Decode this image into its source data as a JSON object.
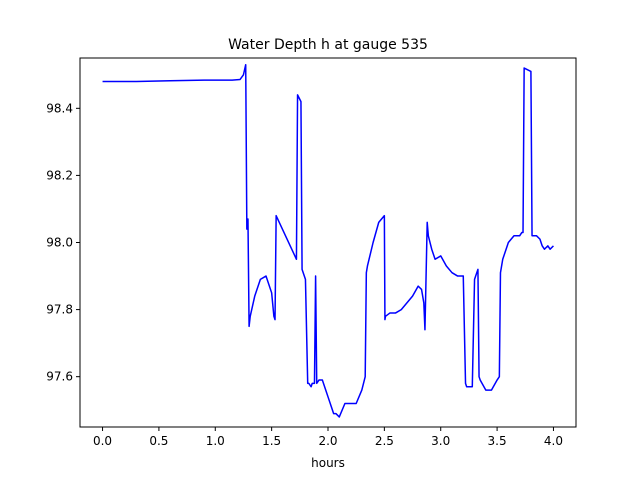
{
  "chart_data": {
    "type": "line",
    "title": "Water Depth h at gauge 535",
    "xlabel": "hours",
    "ylabel": "",
    "xlim": [
      -0.2,
      4.2
    ],
    "ylim": [
      97.45,
      98.55
    ],
    "grid": false,
    "xticks": [
      0.0,
      0.5,
      1.0,
      1.5,
      2.0,
      2.5,
      3.0,
      3.5,
      4.0
    ],
    "xtick_labels": [
      "0.0",
      "0.5",
      "1.0",
      "1.5",
      "2.0",
      "2.5",
      "3.0",
      "3.5",
      "4.0"
    ],
    "yticks": [
      97.6,
      97.8,
      98.0,
      98.2,
      98.4
    ],
    "ytick_labels": [
      "97.6",
      "97.8",
      "98.0",
      "98.2",
      "98.4"
    ],
    "series": [
      {
        "color": "#0000ff",
        "x": [
          0.0,
          0.3,
          0.6,
          0.9,
          1.0,
          1.15,
          1.22,
          1.25,
          1.27,
          1.28,
          1.285,
          1.29,
          1.3,
          1.31,
          1.35,
          1.4,
          1.45,
          1.5,
          1.52,
          1.53,
          1.54,
          1.72,
          1.73,
          1.76,
          1.77,
          1.8,
          1.82,
          1.83,
          1.85,
          1.86,
          1.88,
          1.89,
          1.9,
          1.92,
          1.95,
          1.98,
          2.0,
          2.03,
          2.05,
          2.07,
          2.1,
          2.15,
          2.2,
          2.25,
          2.3,
          2.33,
          2.34,
          2.35,
          2.4,
          2.45,
          2.5,
          2.505,
          2.51,
          2.55,
          2.6,
          2.65,
          2.7,
          2.75,
          2.8,
          2.83,
          2.85,
          2.86,
          2.88,
          2.885,
          2.89,
          2.92,
          2.95,
          3.0,
          3.05,
          3.1,
          3.15,
          3.2,
          3.22,
          3.23,
          3.25,
          3.28,
          3.3,
          3.31,
          3.33,
          3.34,
          3.35,
          3.4,
          3.45,
          3.5,
          3.52,
          3.53,
          3.55,
          3.6,
          3.65,
          3.7,
          3.72,
          3.73,
          3.74,
          3.8,
          3.81,
          3.85,
          3.88,
          3.9,
          3.92,
          3.95,
          3.97,
          4.0
        ],
        "y": [
          98.48,
          98.48,
          98.482,
          98.484,
          98.484,
          98.484,
          98.486,
          98.5,
          98.53,
          98.04,
          98.06,
          98.07,
          97.75,
          97.78,
          97.84,
          97.89,
          97.9,
          97.85,
          97.78,
          97.77,
          98.08,
          97.95,
          98.44,
          98.42,
          97.92,
          97.89,
          97.58,
          97.58,
          97.57,
          97.58,
          97.58,
          97.9,
          97.58,
          97.59,
          97.59,
          97.56,
          97.54,
          97.51,
          97.49,
          97.49,
          97.48,
          97.52,
          97.52,
          97.52,
          97.56,
          97.6,
          97.91,
          97.93,
          98.0,
          98.06,
          98.08,
          97.77,
          97.78,
          97.79,
          97.79,
          97.8,
          97.82,
          97.84,
          97.87,
          97.86,
          97.82,
          97.74,
          98.06,
          98.04,
          98.02,
          97.98,
          97.95,
          97.96,
          97.93,
          97.91,
          97.9,
          97.9,
          97.58,
          97.57,
          97.57,
          97.57,
          97.89,
          97.9,
          97.92,
          97.6,
          97.59,
          97.56,
          97.56,
          97.59,
          97.6,
          97.91,
          97.95,
          98.0,
          98.02,
          98.02,
          98.03,
          98.03,
          98.52,
          98.51,
          98.02,
          98.02,
          98.01,
          97.99,
          97.98,
          97.99,
          97.98,
          97.99
        ]
      }
    ]
  }
}
